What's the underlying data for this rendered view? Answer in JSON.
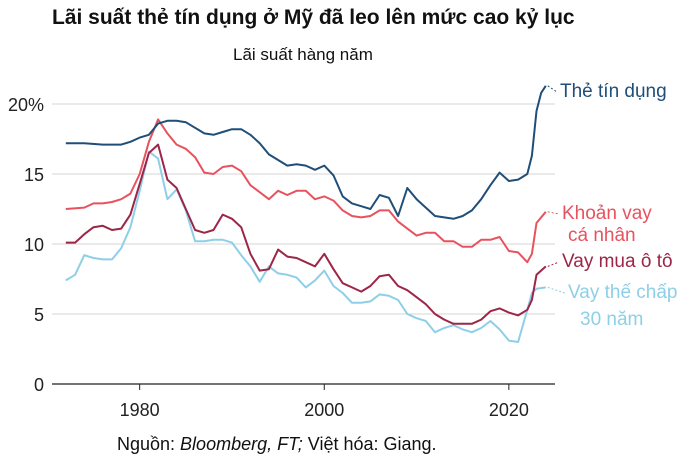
{
  "title": "Lãi suất thẻ tín dụng ở Mỹ đã leo lên mức cao kỷ lục",
  "subtitle": "Lãi suất hàng năm",
  "source": {
    "prefix": "Nguồn: ",
    "italic": "Bloomberg, FT;",
    "suffix": " Việt hóa: Giang."
  },
  "chart_data": {
    "type": "line",
    "title": "Lãi suất thẻ tín dụng ở Mỹ đã leo lên mức cao kỷ lục",
    "subtitle": "Lãi suất hàng năm",
    "xlabel": "",
    "ylabel": "",
    "xlim": [
      1970.5,
      2025
    ],
    "ylim": [
      0,
      21
    ],
    "x_ticks": [
      1980,
      2000,
      2020
    ],
    "y_ticks": [
      0,
      5,
      10,
      15,
      20
    ],
    "y_tick_labels": [
      "0",
      "5",
      "10",
      "15",
      "20%"
    ],
    "grid": "horizontal",
    "legend": "direct labels at right end of lines",
    "series": [
      {
        "name": "Thẻ tín dụng",
        "label_lines": [
          "Thẻ tín dụng"
        ],
        "color": "#1f4e79",
        "points": [
          [
            1972,
            17.2
          ],
          [
            1974,
            17.2
          ],
          [
            1976,
            17.1
          ],
          [
            1978,
            17.1
          ],
          [
            1979,
            17.3
          ],
          [
            1980,
            17.6
          ],
          [
            1981,
            17.8
          ],
          [
            1982,
            18.6
          ],
          [
            1983,
            18.8
          ],
          [
            1984,
            18.8
          ],
          [
            1985,
            18.7
          ],
          [
            1986,
            18.3
          ],
          [
            1987,
            17.9
          ],
          [
            1988,
            17.8
          ],
          [
            1989,
            18.0
          ],
          [
            1990,
            18.2
          ],
          [
            1991,
            18.2
          ],
          [
            1992,
            17.8
          ],
          [
            1993,
            17.2
          ],
          [
            1994,
            16.4
          ],
          [
            1995,
            16.0
          ],
          [
            1996,
            15.6
          ],
          [
            1997,
            15.7
          ],
          [
            1998,
            15.6
          ],
          [
            1999,
            15.3
          ],
          [
            2000,
            15.6
          ],
          [
            2001,
            14.9
          ],
          [
            2002,
            13.4
          ],
          [
            2003,
            12.9
          ],
          [
            2004,
            12.7
          ],
          [
            2005,
            12.5
          ],
          [
            2006,
            13.5
          ],
          [
            2007,
            13.3
          ],
          [
            2008,
            12.0
          ],
          [
            2009,
            14.0
          ],
          [
            2010,
            13.2
          ],
          [
            2011,
            12.6
          ],
          [
            2012,
            12.0
          ],
          [
            2013,
            11.9
          ],
          [
            2014,
            11.8
          ],
          [
            2015,
            12.0
          ],
          [
            2016,
            12.4
          ],
          [
            2017,
            13.2
          ],
          [
            2018,
            14.2
          ],
          [
            2019,
            15.1
          ],
          [
            2020,
            14.5
          ],
          [
            2021,
            14.6
          ],
          [
            2022,
            15.0
          ],
          [
            2022.5,
            16.3
          ],
          [
            2023,
            19.5
          ],
          [
            2023.5,
            20.8
          ],
          [
            2024,
            21.3
          ]
        ]
      },
      {
        "name": "Khoản vay cá nhân",
        "label_lines": [
          "Khoản vay",
          "cá nhân"
        ],
        "color": "#e8525e",
        "points": [
          [
            1972,
            12.5
          ],
          [
            1974,
            12.6
          ],
          [
            1975,
            12.9
          ],
          [
            1976,
            12.9
          ],
          [
            1977,
            13.0
          ],
          [
            1978,
            13.2
          ],
          [
            1979,
            13.6
          ],
          [
            1980,
            15.0
          ],
          [
            1981,
            17.3
          ],
          [
            1982,
            18.9
          ],
          [
            1983,
            17.9
          ],
          [
            1984,
            17.1
          ],
          [
            1985,
            16.8
          ],
          [
            1986,
            16.2
          ],
          [
            1987,
            15.1
          ],
          [
            1988,
            15.0
          ],
          [
            1989,
            15.5
          ],
          [
            1990,
            15.6
          ],
          [
            1991,
            15.2
          ],
          [
            1992,
            14.2
          ],
          [
            1993,
            13.7
          ],
          [
            1994,
            13.2
          ],
          [
            1995,
            13.8
          ],
          [
            1996,
            13.5
          ],
          [
            1997,
            13.8
          ],
          [
            1998,
            13.8
          ],
          [
            1999,
            13.2
          ],
          [
            2000,
            13.4
          ],
          [
            2001,
            13.1
          ],
          [
            2002,
            12.4
          ],
          [
            2003,
            12.0
          ],
          [
            2004,
            11.9
          ],
          [
            2005,
            12.0
          ],
          [
            2006,
            12.4
          ],
          [
            2007,
            12.4
          ],
          [
            2008,
            11.6
          ],
          [
            2009,
            11.1
          ],
          [
            2010,
            10.6
          ],
          [
            2011,
            10.8
          ],
          [
            2012,
            10.8
          ],
          [
            2013,
            10.2
          ],
          [
            2014,
            10.2
          ],
          [
            2015,
            9.8
          ],
          [
            2016,
            9.8
          ],
          [
            2017,
            10.3
          ],
          [
            2018,
            10.3
          ],
          [
            2019,
            10.5
          ],
          [
            2020,
            9.5
          ],
          [
            2021,
            9.4
          ],
          [
            2022,
            8.7
          ],
          [
            2022.5,
            9.3
          ],
          [
            2023,
            11.5
          ],
          [
            2024,
            12.3
          ]
        ]
      },
      {
        "name": "Vay mua ô tô",
        "label_lines": [
          "Vay mua ô tô"
        ],
        "color": "#9c2548",
        "points": [
          [
            1972,
            10.1
          ],
          [
            1973,
            10.1
          ],
          [
            1974,
            10.7
          ],
          [
            1975,
            11.2
          ],
          [
            1976,
            11.3
          ],
          [
            1977,
            11.0
          ],
          [
            1978,
            11.1
          ],
          [
            1979,
            12.1
          ],
          [
            1980,
            14.3
          ],
          [
            1981,
            16.5
          ],
          [
            1982,
            17.1
          ],
          [
            1983,
            14.6
          ],
          [
            1984,
            14.0
          ],
          [
            1985,
            12.5
          ],
          [
            1986,
            11.0
          ],
          [
            1987,
            10.8
          ],
          [
            1988,
            11.0
          ],
          [
            1989,
            12.1
          ],
          [
            1990,
            11.8
          ],
          [
            1991,
            11.2
          ],
          [
            1992,
            9.3
          ],
          [
            1993,
            8.1
          ],
          [
            1994,
            8.2
          ],
          [
            1995,
            9.6
          ],
          [
            1996,
            9.1
          ],
          [
            1997,
            9.0
          ],
          [
            1998,
            8.7
          ],
          [
            1999,
            8.4
          ],
          [
            2000,
            9.3
          ],
          [
            2001,
            8.2
          ],
          [
            2002,
            7.2
          ],
          [
            2003,
            6.9
          ],
          [
            2004,
            6.6
          ],
          [
            2005,
            7.0
          ],
          [
            2006,
            7.7
          ],
          [
            2007,
            7.8
          ],
          [
            2008,
            7.0
          ],
          [
            2009,
            6.7
          ],
          [
            2010,
            6.2
          ],
          [
            2011,
            5.7
          ],
          [
            2012,
            5.0
          ],
          [
            2013,
            4.6
          ],
          [
            2014,
            4.3
          ],
          [
            2015,
            4.3
          ],
          [
            2016,
            4.3
          ],
          [
            2017,
            4.6
          ],
          [
            2018,
            5.2
          ],
          [
            2019,
            5.4
          ],
          [
            2020,
            5.1
          ],
          [
            2021,
            4.9
          ],
          [
            2022,
            5.3
          ],
          [
            2022.5,
            6.0
          ],
          [
            2023,
            7.8
          ],
          [
            2024,
            8.4
          ]
        ]
      },
      {
        "name": "Vay thế chấp 30 năm",
        "label_lines": [
          "Vay thế chấp",
          "30 năm"
        ],
        "color": "#8ecfe8",
        "points": [
          [
            1972,
            7.4
          ],
          [
            1973,
            7.8
          ],
          [
            1974,
            9.2
          ],
          [
            1975,
            9.0
          ],
          [
            1976,
            8.9
          ],
          [
            1977,
            8.9
          ],
          [
            1978,
            9.7
          ],
          [
            1979,
            11.2
          ],
          [
            1980,
            13.8
          ],
          [
            1981,
            16.6
          ],
          [
            1982,
            16.1
          ],
          [
            1983,
            13.2
          ],
          [
            1984,
            13.9
          ],
          [
            1985,
            12.4
          ],
          [
            1986,
            10.2
          ],
          [
            1987,
            10.2
          ],
          [
            1988,
            10.3
          ],
          [
            1989,
            10.3
          ],
          [
            1990,
            10.1
          ],
          [
            1991,
            9.2
          ],
          [
            1992,
            8.4
          ],
          [
            1993,
            7.3
          ],
          [
            1994,
            8.4
          ],
          [
            1995,
            7.9
          ],
          [
            1996,
            7.8
          ],
          [
            1997,
            7.6
          ],
          [
            1998,
            6.9
          ],
          [
            1999,
            7.4
          ],
          [
            2000,
            8.1
          ],
          [
            2001,
            7.0
          ],
          [
            2002,
            6.5
          ],
          [
            2003,
            5.8
          ],
          [
            2004,
            5.8
          ],
          [
            2005,
            5.9
          ],
          [
            2006,
            6.4
          ],
          [
            2007,
            6.3
          ],
          [
            2008,
            6.0
          ],
          [
            2009,
            5.0
          ],
          [
            2010,
            4.7
          ],
          [
            2011,
            4.5
          ],
          [
            2012,
            3.7
          ],
          [
            2013,
            4.0
          ],
          [
            2014,
            4.2
          ],
          [
            2015,
            3.9
          ],
          [
            2016,
            3.7
          ],
          [
            2017,
            4.0
          ],
          [
            2018,
            4.5
          ],
          [
            2019,
            3.9
          ],
          [
            2020,
            3.1
          ],
          [
            2021,
            3.0
          ],
          [
            2022,
            5.3
          ],
          [
            2022.5,
            6.5
          ],
          [
            2023,
            6.8
          ],
          [
            2024,
            6.9
          ]
        ]
      }
    ]
  }
}
